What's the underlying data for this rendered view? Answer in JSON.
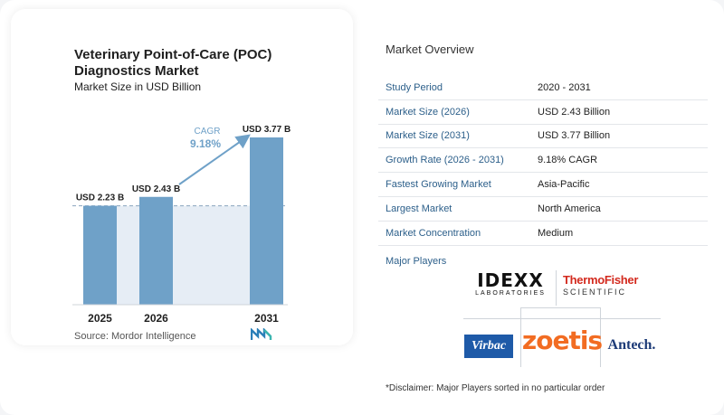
{
  "chart_data": {
    "type": "bar",
    "title": "Veterinary Point-of-Care (POC) Diagnostics Market",
    "subtitle": "Market Size in USD Billion",
    "categories": [
      "2025",
      "2026",
      "2031"
    ],
    "values": [
      2.23,
      2.43,
      3.77
    ],
    "data_labels": [
      "USD 2.23 B",
      "USD 2.43 B",
      "USD 3.77 B"
    ],
    "cagr_label": "CAGR",
    "cagr_value": "9.18%",
    "bar_color": "#6fa1c8",
    "shade_color": "#e6edf5",
    "source": "Source:  Mordor Intelligence"
  },
  "overview": {
    "title": "Market Overview",
    "rows": [
      {
        "label": "Study Period",
        "value": "2020 - 2031"
      },
      {
        "label": "Market Size (2026)",
        "value": "USD 2.43 Billion"
      },
      {
        "label": "Market Size (2031)",
        "value": "USD 3.77 Billion"
      },
      {
        "label": "Growth Rate (2026 - 2031)",
        "value": "9.18% CAGR"
      },
      {
        "label": "Fastest Growing Market",
        "value": "Asia-Pacific"
      },
      {
        "label": "Largest Market",
        "value": "North America"
      },
      {
        "label": "Market Concentration",
        "value": "Medium"
      }
    ]
  },
  "players": {
    "title": "Major Players",
    "idexx_main": "IDEXX",
    "idexx_sub": "LABORATORIES",
    "thermo_main": "ThermoFisher",
    "thermo_sub": "SCIENTIFIC",
    "virbac": "Virbac",
    "zoetis": "zoetis",
    "antech": "Antech."
  },
  "disclaimer": "*Disclaimer: Major Players sorted in no particular order"
}
